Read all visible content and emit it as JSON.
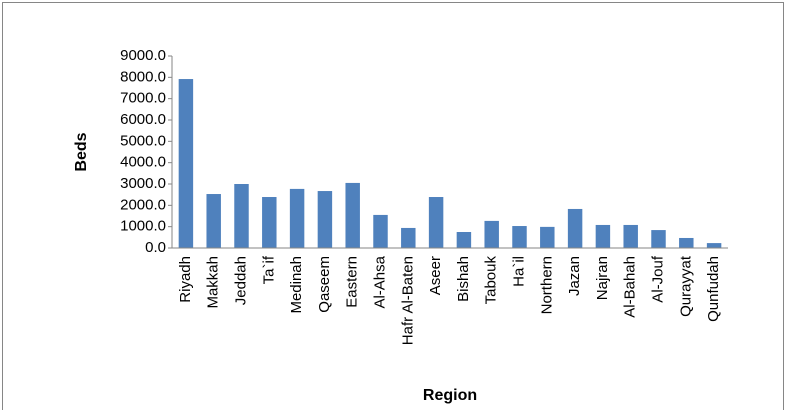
{
  "chart_data": {
    "type": "bar",
    "y_label": "Beds",
    "x_label": "Region",
    "categories": [
      "Riyadh",
      "Makkah",
      "Jeddah",
      "Ta`if",
      "Medinah",
      "Qaseem",
      "Eastern",
      "Al-Ahsa",
      "Hafr Al-Baten",
      "Aseer",
      "Bishah",
      "Tabouk",
      "Ha`il",
      "Northern",
      "Jazan",
      "Najran",
      "Al-Bahah",
      "Al-Jouf",
      "Qurayyat",
      "Qunfudah"
    ],
    "values": [
      7920,
      2530,
      3000,
      2390,
      2770,
      2670,
      3050,
      1550,
      940,
      2390,
      750,
      1270,
      1030,
      990,
      1830,
      1080,
      1080,
      840,
      470,
      230
    ],
    "color": "#4f81bd",
    "ylim": [
      0,
      9000
    ],
    "yticks": [
      {
        "value": 0,
        "label": "0.0"
      },
      {
        "value": 1000,
        "label": "1000.0"
      },
      {
        "value": 2000,
        "label": "2000.0"
      },
      {
        "value": 3000,
        "label": "3000.0"
      },
      {
        "value": 4000,
        "label": "4000.0"
      },
      {
        "value": 5000,
        "label": "5000.0"
      },
      {
        "value": 6000,
        "label": "6000.0"
      },
      {
        "value": 7000,
        "label": "7000.0"
      },
      {
        "value": 8000,
        "label": "8000.0"
      },
      {
        "value": 9000,
        "label": "9000.0"
      }
    ],
    "grid": false
  }
}
